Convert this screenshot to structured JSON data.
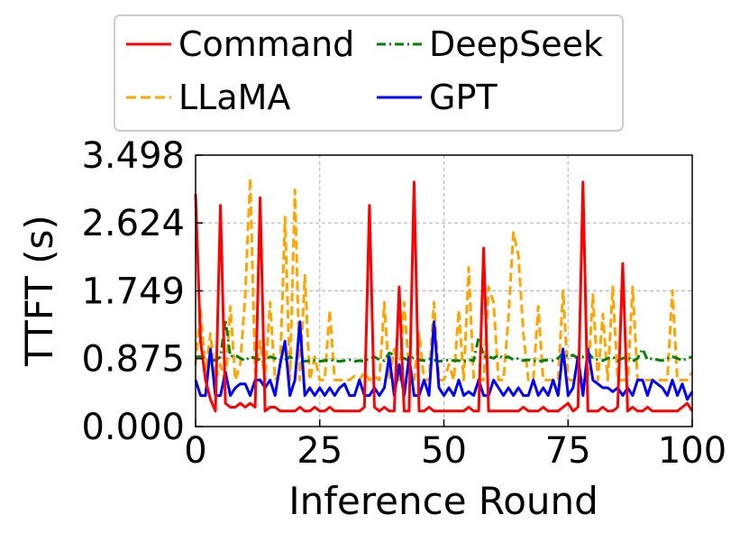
{
  "chart_data": {
    "type": "line",
    "title": "",
    "xlabel": "Inference Round",
    "ylabel": "TTFT (s)",
    "xlim": [
      0,
      100
    ],
    "ylim": [
      0,
      3.498
    ],
    "xticks": [
      0,
      25,
      50,
      75,
      100
    ],
    "xtick_labels": [
      "0",
      "25",
      "50",
      "75",
      "100"
    ],
    "yticks": [
      0,
      0.875,
      1.749,
      2.624,
      3.498
    ],
    "ytick_labels": [
      "0.000",
      "0.875",
      "1.749",
      "2.624",
      "3.498"
    ],
    "grid": true,
    "legend_position": "top-center",
    "series": [
      {
        "name": "Command",
        "color": "#ff0000",
        "dash": "solid",
        "x": [
          0,
          1,
          2,
          3,
          4,
          5,
          6,
          7,
          8,
          9,
          10,
          11,
          12,
          13,
          14,
          15,
          16,
          17,
          18,
          19,
          20,
          21,
          22,
          23,
          24,
          25,
          26,
          27,
          28,
          29,
          30,
          31,
          32,
          33,
          34,
          35,
          36,
          37,
          38,
          39,
          40,
          41,
          42,
          43,
          44,
          45,
          46,
          47,
          48,
          49,
          50,
          51,
          52,
          53,
          54,
          55,
          56,
          57,
          58,
          59,
          60,
          61,
          62,
          63,
          64,
          65,
          66,
          67,
          68,
          69,
          70,
          71,
          72,
          73,
          74,
          75,
          76,
          77,
          78,
          79,
          80,
          81,
          82,
          83,
          84,
          85,
          86,
          87,
          88,
          89,
          90,
          91,
          92,
          93,
          94,
          95,
          96,
          97,
          98,
          99,
          100
        ],
        "values": [
          3.0,
          1.1,
          0.6,
          0.35,
          0.2,
          2.85,
          0.3,
          0.25,
          0.25,
          0.3,
          0.25,
          0.3,
          0.25,
          2.95,
          0.2,
          0.25,
          0.25,
          0.2,
          0.2,
          0.2,
          0.2,
          0.25,
          0.2,
          0.2,
          0.25,
          0.2,
          0.2,
          0.25,
          0.2,
          0.2,
          0.2,
          0.2,
          0.2,
          0.2,
          0.25,
          2.85,
          0.25,
          0.2,
          0.25,
          0.2,
          0.2,
          1.8,
          0.2,
          0.2,
          3.15,
          0.2,
          0.2,
          0.25,
          0.2,
          0.2,
          0.2,
          0.2,
          0.2,
          0.2,
          0.2,
          0.25,
          0.2,
          0.2,
          2.3,
          0.2,
          0.2,
          0.2,
          0.2,
          0.2,
          0.2,
          0.2,
          0.25,
          0.2,
          0.2,
          0.2,
          0.25,
          0.2,
          0.2,
          0.2,
          0.25,
          0.3,
          0.2,
          0.25,
          3.15,
          0.2,
          0.2,
          0.2,
          0.25,
          0.2,
          0.2,
          0.25,
          2.1,
          0.2,
          0.25,
          0.2,
          0.2,
          0.25,
          0.2,
          0.2,
          0.2,
          0.2,
          0.2,
          0.2,
          0.25,
          0.3,
          0.2
        ]
      },
      {
        "name": "LLaMA",
        "color": "#ffa500",
        "dash": "dashed",
        "x": [
          0,
          1,
          2,
          3,
          4,
          5,
          6,
          7,
          8,
          9,
          10,
          11,
          12,
          13,
          14,
          15,
          16,
          17,
          18,
          19,
          20,
          21,
          22,
          23,
          24,
          25,
          26,
          27,
          28,
          29,
          30,
          31,
          32,
          33,
          34,
          35,
          36,
          37,
          38,
          39,
          40,
          41,
          42,
          43,
          44,
          45,
          46,
          47,
          48,
          49,
          50,
          51,
          52,
          53,
          54,
          55,
          56,
          57,
          58,
          59,
          60,
          61,
          62,
          63,
          64,
          65,
          66,
          67,
          68,
          69,
          70,
          71,
          72,
          73,
          74,
          75,
          76,
          77,
          78,
          79,
          80,
          81,
          82,
          83,
          84,
          85,
          86,
          87,
          88,
          89,
          90,
          91,
          92,
          93,
          94,
          95,
          96,
          97,
          98,
          99,
          100
        ],
        "values": [
          0.8,
          1.5,
          0.7,
          1.2,
          0.6,
          0.8,
          0.55,
          1.55,
          0.6,
          0.8,
          1.7,
          3.2,
          0.7,
          1.1,
          0.6,
          1.6,
          0.6,
          0.7,
          2.7,
          0.6,
          3.05,
          0.6,
          1.95,
          0.6,
          0.9,
          0.6,
          0.6,
          1.5,
          0.6,
          0.6,
          0.6,
          0.6,
          0.65,
          0.6,
          0.7,
          0.6,
          0.65,
          0.6,
          1.6,
          0.6,
          1.0,
          0.6,
          1.6,
          0.7,
          0.6,
          1.2,
          0.6,
          0.6,
          1.6,
          0.6,
          0.6,
          0.8,
          0.6,
          1.5,
          0.6,
          2.05,
          0.6,
          0.6,
          0.6,
          1.8,
          1.6,
          0.6,
          0.6,
          1.4,
          2.5,
          2.2,
          1.2,
          0.6,
          0.6,
          1.55,
          0.6,
          0.6,
          0.6,
          0.6,
          1.75,
          0.6,
          0.6,
          0.6,
          0.6,
          0.6,
          1.7,
          0.6,
          1.45,
          0.6,
          1.8,
          0.6,
          0.6,
          0.6,
          1.8,
          0.6,
          0.6,
          0.6,
          0.6,
          0.6,
          0.6,
          0.6,
          1.75,
          0.6,
          0.6,
          0.6,
          0.7
        ]
      },
      {
        "name": "DeepSeek",
        "color": "#008000",
        "dash": "dashdot",
        "x": [
          0,
          1,
          2,
          3,
          4,
          5,
          6,
          7,
          8,
          9,
          10,
          11,
          12,
          13,
          14,
          15,
          16,
          17,
          18,
          19,
          20,
          21,
          22,
          23,
          24,
          25,
          26,
          27,
          28,
          29,
          30,
          31,
          32,
          33,
          34,
          35,
          36,
          37,
          38,
          39,
          40,
          41,
          42,
          43,
          44,
          45,
          46,
          47,
          48,
          49,
          50,
          51,
          52,
          53,
          54,
          55,
          56,
          57,
          58,
          59,
          60,
          61,
          62,
          63,
          64,
          65,
          66,
          67,
          68,
          69,
          70,
          71,
          72,
          73,
          74,
          75,
          76,
          77,
          78,
          79,
          80,
          81,
          82,
          83,
          84,
          85,
          86,
          87,
          88,
          89,
          90,
          91,
          92,
          93,
          94,
          95,
          96,
          97,
          98,
          99,
          100
        ],
        "values": [
          0.9,
          0.9,
          0.88,
          0.88,
          0.85,
          0.9,
          1.38,
          0.9,
          0.92,
          0.88,
          0.85,
          0.9,
          0.88,
          0.86,
          0.85,
          0.9,
          0.88,
          0.86,
          0.85,
          0.9,
          0.86,
          0.85,
          0.84,
          0.85,
          0.85,
          0.84,
          0.85,
          0.86,
          0.85,
          0.84,
          0.85,
          0.86,
          0.84,
          0.85,
          0.84,
          0.88,
          0.9,
          0.86,
          0.85,
          0.95,
          0.92,
          0.9,
          0.88,
          0.85,
          0.9,
          0.86,
          0.85,
          0.87,
          0.86,
          0.84,
          0.85,
          0.86,
          0.85,
          0.85,
          0.84,
          0.86,
          0.85,
          1.15,
          0.9,
          0.9,
          0.88,
          0.92,
          0.88,
          0.9,
          0.86,
          0.88,
          0.85,
          0.86,
          0.85,
          0.84,
          0.85,
          0.86,
          0.85,
          0.88,
          0.95,
          0.9,
          0.92,
          0.88,
          0.9,
          0.95,
          0.88,
          0.86,
          0.85,
          0.88,
          0.9,
          0.85,
          0.88,
          0.9,
          0.84,
          0.88,
          1.0,
          0.86,
          0.88,
          0.86,
          0.85,
          0.88,
          0.9,
          0.88,
          0.85,
          0.88,
          0.9
        ]
      },
      {
        "name": "GPT",
        "color": "#0000ff",
        "dash": "solid",
        "x": [
          0,
          1,
          2,
          3,
          4,
          5,
          6,
          7,
          8,
          9,
          10,
          11,
          12,
          13,
          14,
          15,
          16,
          17,
          18,
          19,
          20,
          21,
          22,
          23,
          24,
          25,
          26,
          27,
          28,
          29,
          30,
          31,
          32,
          33,
          34,
          35,
          36,
          37,
          38,
          39,
          40,
          41,
          42,
          43,
          44,
          45,
          46,
          47,
          48,
          49,
          50,
          51,
          52,
          53,
          54,
          55,
          56,
          57,
          58,
          59,
          60,
          61,
          62,
          63,
          64,
          65,
          66,
          67,
          68,
          69,
          70,
          71,
          72,
          73,
          74,
          75,
          76,
          77,
          78,
          79,
          80,
          81,
          82,
          83,
          84,
          85,
          86,
          87,
          88,
          89,
          90,
          91,
          92,
          93,
          94,
          95,
          96,
          97,
          98,
          99,
          100
        ],
        "values": [
          0.6,
          0.4,
          0.4,
          1.0,
          0.4,
          0.4,
          0.7,
          0.4,
          0.5,
          0.55,
          0.55,
          0.4,
          0.6,
          0.6,
          0.5,
          0.6,
          0.4,
          0.8,
          1.1,
          0.4,
          0.6,
          1.35,
          0.4,
          0.5,
          0.4,
          0.5,
          0.4,
          0.5,
          0.4,
          0.5,
          0.55,
          0.4,
          0.4,
          0.6,
          0.4,
          0.4,
          0.5,
          0.4,
          0.5,
          0.9,
          0.4,
          0.8,
          0.4,
          0.9,
          0.4,
          0.4,
          0.6,
          0.4,
          1.35,
          0.5,
          0.4,
          0.5,
          0.4,
          0.6,
          0.4,
          0.45,
          0.4,
          0.6,
          0.4,
          0.4,
          0.6,
          0.5,
          0.4,
          0.5,
          0.4,
          0.5,
          0.4,
          0.4,
          0.6,
          0.4,
          0.5,
          0.4,
          0.6,
          0.4,
          1.0,
          0.4,
          0.5,
          0.9,
          0.4,
          1.0,
          0.6,
          0.55,
          0.5,
          0.5,
          0.45,
          0.5,
          0.4,
          0.5,
          0.4,
          0.6,
          0.6,
          0.4,
          0.6,
          0.55,
          0.5,
          0.4,
          0.6,
          0.4,
          0.55,
          0.35,
          0.45
        ]
      }
    ]
  }
}
